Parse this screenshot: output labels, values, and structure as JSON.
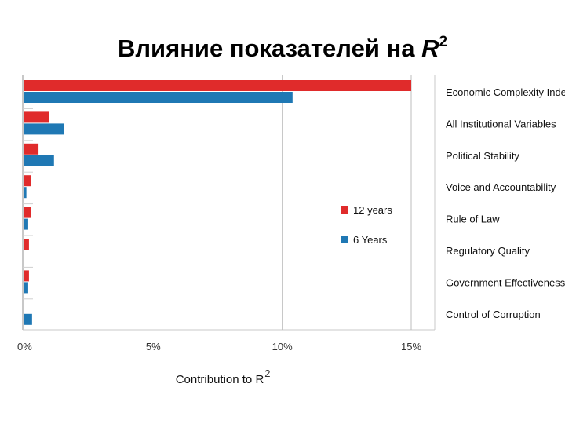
{
  "slide": {
    "title_text": "Влияние показателей на ",
    "title_r": "R",
    "title_sup": "2"
  },
  "chart_data": {
    "type": "bar",
    "orientation": "horizontal",
    "xlabel": "Contribution to R",
    "xlabel_sup": "2",
    "xlim": [
      0,
      15
    ],
    "ticks": [
      {
        "value": 0,
        "label": "0%"
      },
      {
        "value": 5,
        "label": "5%"
      },
      {
        "value": 10,
        "label": "10%"
      },
      {
        "value": 15,
        "label": "15%"
      }
    ],
    "categories": [
      "Economic Complexity Index",
      "All Institutional Variables",
      "Political Stability",
      "Voice and Accountability",
      "Rule of Law",
      "Regulatory Quality",
      "Government Effectiveness",
      "Control of Corruption"
    ],
    "series": [
      {
        "name": "12 years",
        "color": "#e02b2b",
        "values": [
          15.0,
          0.95,
          0.55,
          0.25,
          0.25,
          0.18,
          0.18,
          0.0
        ]
      },
      {
        "name": "6 Years",
        "color": "#1f78b4",
        "values": [
          10.4,
          1.55,
          1.15,
          0.08,
          0.15,
          0.0,
          0.15,
          0.3
        ]
      }
    ],
    "legend_position": "center-right",
    "grid": "vertical lines at 10% and 15%"
  }
}
